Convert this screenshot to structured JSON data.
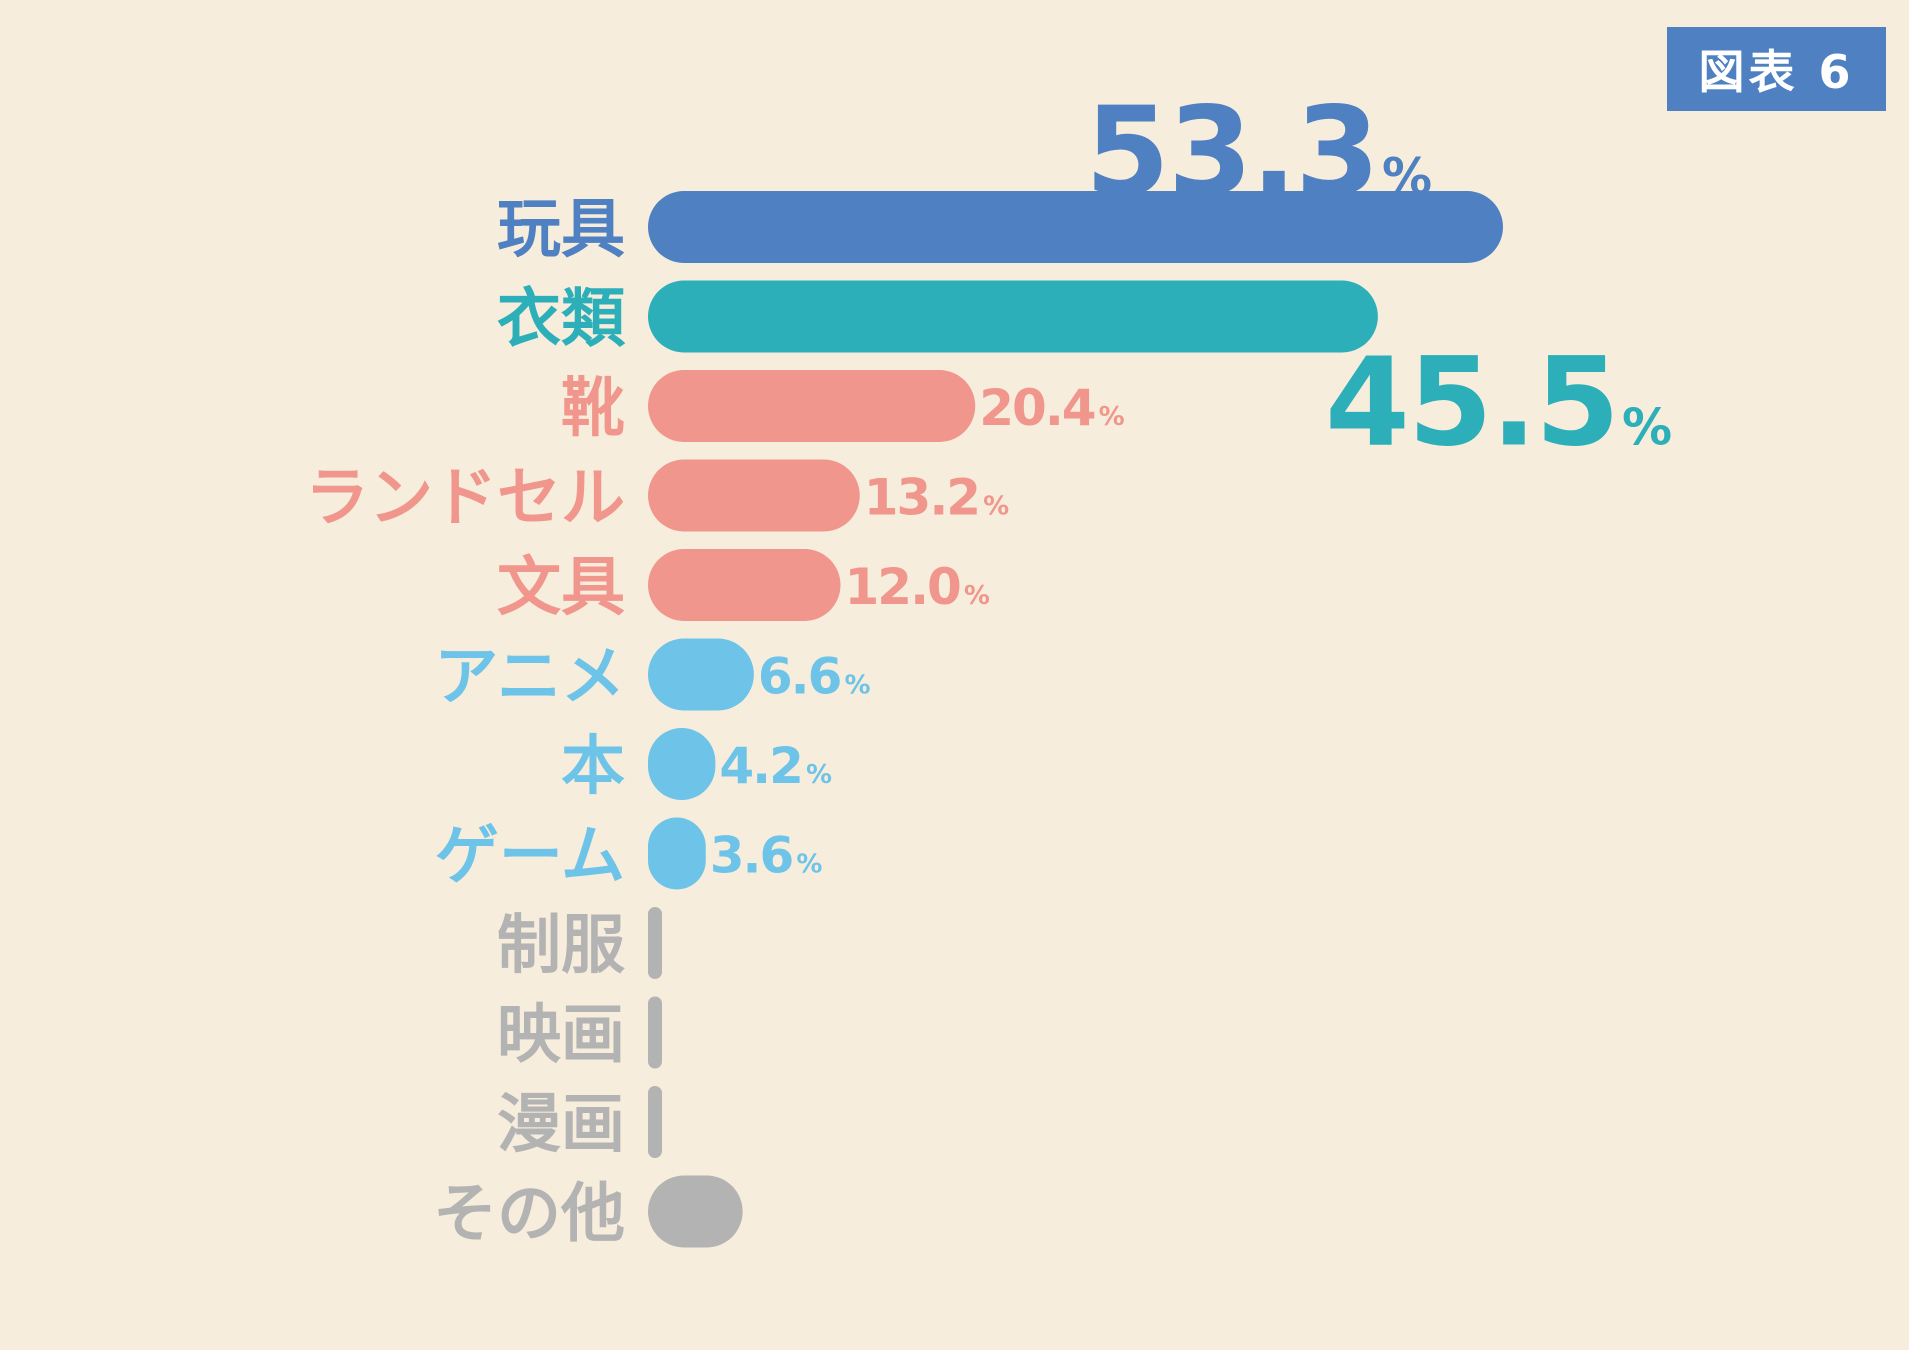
{
  "badge": {
    "label": "図表 6"
  },
  "colors": {
    "background": "#f6eddc",
    "badge": "#4e80c2",
    "blue": "#4e80c2",
    "teal": "#2cafb8",
    "salmon": "#f0968c",
    "sky": "#6ec3e8",
    "gray": "#b3b3b3"
  },
  "chart_data": {
    "type": "bar",
    "orientation": "horizontal",
    "title": "",
    "xlabel": "",
    "ylabel": "",
    "unit": "%",
    "xlim": [
      0,
      53.3
    ],
    "grid": false,
    "categories": [
      "玩具",
      "衣類",
      "靴",
      "ランドセル",
      "文具",
      "アニメ",
      "本",
      "ゲーム",
      "制服",
      "映画",
      "漫画",
      "その他"
    ],
    "values": [
      53.3,
      45.5,
      20.4,
      13.2,
      12.0,
      6.6,
      4.2,
      3.6,
      0.8,
      0.4,
      0.4,
      5.9
    ],
    "value_labels": [
      "53.3",
      "45.5",
      "20.4",
      "13.2",
      "12.0",
      "6.6",
      "4.2",
      "3.6",
      "",
      "",
      "",
      ""
    ],
    "bar_colors": [
      "#4e80c2",
      "#2cafb8",
      "#f0968c",
      "#f0968c",
      "#f0968c",
      "#6ec3e8",
      "#6ec3e8",
      "#6ec3e8",
      "#b3b3b3",
      "#b3b3b3",
      "#b3b3b3",
      "#b3b3b3"
    ]
  }
}
